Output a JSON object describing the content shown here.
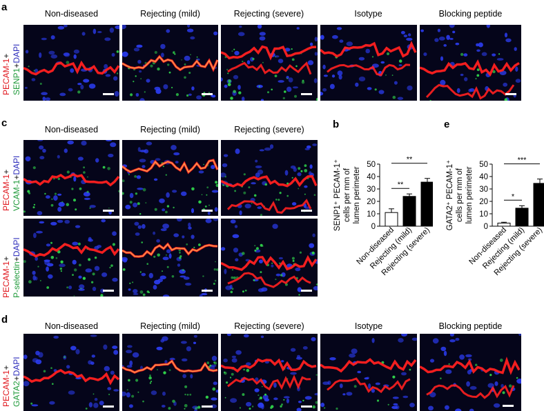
{
  "panels": {
    "a": {
      "letter": "a",
      "columns": [
        "Non-diseased",
        "Rejecting (mild)",
        "Rejecting (severe)",
        "Isotype",
        "Blocking peptide"
      ],
      "stain": {
        "red": "PECAM-1",
        "plus1": "+",
        "green": "SENP1",
        "plus2": "+",
        "blue": "DAPI"
      }
    },
    "c": {
      "letter": "c",
      "columns": [
        "Non-diseased",
        "Rejecting (mild)",
        "Rejecting (severe)"
      ],
      "stain_row1": {
        "red": "PECAM-1",
        "plus1": "+",
        "green": "VCAM-1",
        "plus2": "+",
        "blue": "DAPI"
      },
      "stain_row2": {
        "red": "PECAM-1",
        "plus1": "+",
        "green": "P-selectin",
        "plus2": "+",
        "blue": "DAPI"
      }
    },
    "d": {
      "letter": "d",
      "columns": [
        "Non-diseased",
        "Rejecting (mild)",
        "Rejecting (severe)",
        "Isotype",
        "Blocking peptide"
      ],
      "stain": {
        "red": "PECAM-1",
        "plus1": "+",
        "green": "GATA2",
        "plus2": "+",
        "blue": "DAPI"
      }
    },
    "b": {
      "letter": "b"
    },
    "e": {
      "letter": "e"
    }
  },
  "colors": {
    "red": "#e0151c",
    "green": "#1f9a3a",
    "blue": "#2d2dbb",
    "tile_bg": "#05051a"
  },
  "chart_data": [
    {
      "panel": "b",
      "type": "bar",
      "categories": [
        "Non-diseased",
        "Rejecting (mild)",
        "Rejecting (severe)"
      ],
      "values": [
        11,
        24,
        35.5
      ],
      "errors": [
        3,
        2,
        3
      ],
      "bar_fill": [
        "white",
        "black",
        "black"
      ],
      "ylabel_lines": [
        "SENP1⁺ PECAM-1⁺",
        "cells per mm of",
        "lumen perimeter"
      ],
      "ylim": [
        0,
        50
      ],
      "yticks": [
        0,
        10,
        20,
        30,
        40,
        50
      ],
      "significance": [
        {
          "from": 0,
          "to": 1,
          "label": "**"
        },
        {
          "from": 0,
          "to": 2,
          "label": "**"
        }
      ]
    },
    {
      "panel": "e",
      "type": "bar",
      "categories": [
        "Non-diseased",
        "Rejecting (mild)",
        "Rejecting (severe)"
      ],
      "values": [
        2.5,
        14.5,
        34.5
      ],
      "errors": [
        0.7,
        2,
        3.5
      ],
      "bar_fill": [
        "white",
        "black",
        "black"
      ],
      "ylabel_lines": [
        "GATA2⁺ PECAM-1⁺",
        "cells per mm of",
        "lumen perimeter"
      ],
      "ylim": [
        0,
        50
      ],
      "yticks": [
        0,
        10,
        20,
        30,
        40,
        50
      ],
      "significance": [
        {
          "from": 0,
          "to": 1,
          "label": "*"
        },
        {
          "from": 0,
          "to": 2,
          "label": "***"
        }
      ]
    }
  ]
}
